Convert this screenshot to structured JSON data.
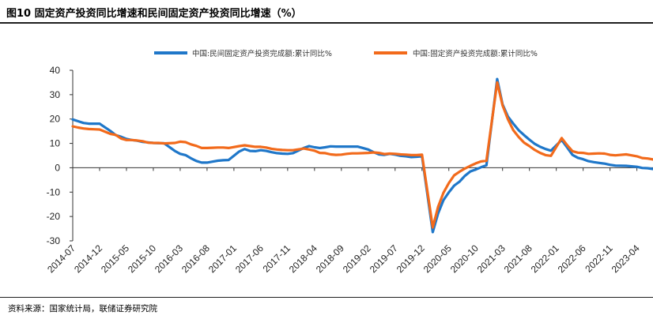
{
  "figure": {
    "title": "图10 固定资产投资同比增速和民间固定资产投资同比增速（%）",
    "source": "资料来源：国家统计局，联储证券研究院"
  },
  "chart_data": {
    "type": "line",
    "title": "图10 固定资产投资同比增速和民间固定资产投资同比增速（%）",
    "xlabel": "",
    "ylabel": "",
    "ylim": [
      -30,
      40
    ],
    "yticks": [
      -30,
      -20,
      -10,
      0,
      10,
      20,
      30,
      40
    ],
    "x_start": "2014-07",
    "x_end": "2023-07",
    "x_tick_labels": [
      "2014-07",
      "2014-12",
      "2015-05",
      "2015-10",
      "2016-03",
      "2016-08",
      "2017-01",
      "2017-06",
      "2017-11",
      "2018-04",
      "2018-09",
      "2019-02",
      "2019-07",
      "2019-12",
      "2020-05",
      "2020-10",
      "2021-03",
      "2021-08",
      "2022-01",
      "2022-06",
      "2022-11",
      "2023-04"
    ],
    "grid": false,
    "legend_position": "top",
    "series": [
      {
        "name": "中国:民间固定资产投资完成额:累计同比%",
        "color": "#1f77c9",
        "points": [
          [
            "2014-07",
            19.8
          ],
          [
            "2014-08",
            19.1
          ],
          [
            "2014-09",
            18.4
          ],
          [
            "2014-10",
            18.1
          ],
          [
            "2014-11",
            18.1
          ],
          [
            "2014-12",
            18.1
          ],
          [
            "2015-02",
            15.1
          ],
          [
            "2015-03",
            13.4
          ],
          [
            "2015-04",
            12.7
          ],
          [
            "2015-05",
            11.8
          ],
          [
            "2015-06",
            11.4
          ],
          [
            "2015-07",
            11.1
          ],
          [
            "2015-08",
            10.6
          ],
          [
            "2015-09",
            10.4
          ],
          [
            "2015-10",
            10.2
          ],
          [
            "2015-11",
            10.1
          ],
          [
            "2015-12",
            10.1
          ],
          [
            "2016-02",
            6.9
          ],
          [
            "2016-03",
            5.7
          ],
          [
            "2016-04",
            5.2
          ],
          [
            "2016-05",
            3.9
          ],
          [
            "2016-06",
            2.8
          ],
          [
            "2016-07",
            2.1
          ],
          [
            "2016-08",
            2.1
          ],
          [
            "2016-09",
            2.5
          ],
          [
            "2016-10",
            2.9
          ],
          [
            "2016-11",
            3.1
          ],
          [
            "2016-12",
            3.2
          ],
          [
            "2017-02",
            6.7
          ],
          [
            "2017-03",
            7.7
          ],
          [
            "2017-04",
            6.9
          ],
          [
            "2017-05",
            6.8
          ],
          [
            "2017-06",
            7.2
          ],
          [
            "2017-07",
            6.9
          ],
          [
            "2017-08",
            6.4
          ],
          [
            "2017-09",
            6.0
          ],
          [
            "2017-10",
            5.8
          ],
          [
            "2017-11",
            5.7
          ],
          [
            "2017-12",
            6.0
          ],
          [
            "2018-02",
            8.1
          ],
          [
            "2018-03",
            8.9
          ],
          [
            "2018-04",
            8.4
          ],
          [
            "2018-05",
            8.1
          ],
          [
            "2018-06",
            8.4
          ],
          [
            "2018-07",
            8.8
          ],
          [
            "2018-08",
            8.7
          ],
          [
            "2018-09",
            8.7
          ],
          [
            "2018-10",
            8.7
          ],
          [
            "2018-11",
            8.7
          ],
          [
            "2018-12",
            8.7
          ],
          [
            "2019-02",
            7.5
          ],
          [
            "2019-03",
            6.4
          ],
          [
            "2019-04",
            5.5
          ],
          [
            "2019-05",
            5.3
          ],
          [
            "2019-06",
            5.7
          ],
          [
            "2019-07",
            5.4
          ],
          [
            "2019-08",
            4.9
          ],
          [
            "2019-09",
            4.7
          ],
          [
            "2019-10",
            4.4
          ],
          [
            "2019-11",
            4.5
          ],
          [
            "2019-12",
            4.7
          ],
          [
            "2020-02",
            -26.4
          ],
          [
            "2020-03",
            -18.8
          ],
          [
            "2020-04",
            -13.3
          ],
          [
            "2020-05",
            -10.1
          ],
          [
            "2020-06",
            -7.3
          ],
          [
            "2020-07",
            -5.7
          ],
          [
            "2020-08",
            -3.3
          ],
          [
            "2020-09",
            -1.5
          ],
          [
            "2020-10",
            -0.7
          ],
          [
            "2020-11",
            0.2
          ],
          [
            "2020-12",
            1.0
          ],
          [
            "2021-02",
            36.4
          ],
          [
            "2021-03",
            26.0
          ],
          [
            "2021-04",
            21.0
          ],
          [
            "2021-05",
            18.1
          ],
          [
            "2021-06",
            15.4
          ],
          [
            "2021-07",
            13.4
          ],
          [
            "2021-08",
            11.5
          ],
          [
            "2021-09",
            9.8
          ],
          [
            "2021-10",
            8.6
          ],
          [
            "2021-11",
            7.7
          ],
          [
            "2021-12",
            7.0
          ],
          [
            "2022-02",
            11.4
          ],
          [
            "2022-03",
            8.4
          ],
          [
            "2022-04",
            5.3
          ],
          [
            "2022-05",
            4.1
          ],
          [
            "2022-06",
            3.5
          ],
          [
            "2022-07",
            2.7
          ],
          [
            "2022-08",
            2.3
          ],
          [
            "2022-09",
            2.0
          ],
          [
            "2022-10",
            1.7
          ],
          [
            "2022-11",
            1.2
          ],
          [
            "2022-12",
            0.9
          ],
          [
            "2023-02",
            0.8
          ],
          [
            "2023-03",
            0.6
          ],
          [
            "2023-04",
            0.4
          ],
          [
            "2023-05",
            -0.1
          ],
          [
            "2023-06",
            -0.2
          ],
          [
            "2023-07",
            -0.5
          ]
        ]
      },
      {
        "name": "中国:固定资产投资完成额:累计同比%",
        "color": "#f26a1b",
        "points": [
          [
            "2014-07",
            17.0
          ],
          [
            "2014-08",
            16.5
          ],
          [
            "2014-09",
            16.1
          ],
          [
            "2014-10",
            15.9
          ],
          [
            "2014-11",
            15.8
          ],
          [
            "2014-12",
            15.7
          ],
          [
            "2015-02",
            13.9
          ],
          [
            "2015-03",
            13.5
          ],
          [
            "2015-04",
            12.0
          ],
          [
            "2015-05",
            11.4
          ],
          [
            "2015-06",
            11.4
          ],
          [
            "2015-07",
            11.2
          ],
          [
            "2015-08",
            10.9
          ],
          [
            "2015-09",
            10.3
          ],
          [
            "2015-10",
            10.2
          ],
          [
            "2015-11",
            10.2
          ],
          [
            "2015-12",
            10.0
          ],
          [
            "2016-02",
            10.2
          ],
          [
            "2016-03",
            10.7
          ],
          [
            "2016-04",
            10.5
          ],
          [
            "2016-05",
            9.6
          ],
          [
            "2016-06",
            9.0
          ],
          [
            "2016-07",
            8.1
          ],
          [
            "2016-08",
            8.1
          ],
          [
            "2016-09",
            8.2
          ],
          [
            "2016-10",
            8.3
          ],
          [
            "2016-11",
            8.3
          ],
          [
            "2016-12",
            8.1
          ],
          [
            "2017-02",
            8.9
          ],
          [
            "2017-03",
            9.2
          ],
          [
            "2017-04",
            8.9
          ],
          [
            "2017-05",
            8.6
          ],
          [
            "2017-06",
            8.6
          ],
          [
            "2017-07",
            8.3
          ],
          [
            "2017-08",
            7.8
          ],
          [
            "2017-09",
            7.5
          ],
          [
            "2017-10",
            7.3
          ],
          [
            "2017-11",
            7.2
          ],
          [
            "2017-12",
            7.2
          ],
          [
            "2018-02",
            7.9
          ],
          [
            "2018-03",
            7.5
          ],
          [
            "2018-04",
            7.0
          ],
          [
            "2018-05",
            6.1
          ],
          [
            "2018-06",
            6.0
          ],
          [
            "2018-07",
            5.5
          ],
          [
            "2018-08",
            5.3
          ],
          [
            "2018-09",
            5.4
          ],
          [
            "2018-10",
            5.7
          ],
          [
            "2018-11",
            5.9
          ],
          [
            "2018-12",
            5.9
          ],
          [
            "2019-02",
            6.1
          ],
          [
            "2019-03",
            6.3
          ],
          [
            "2019-04",
            6.1
          ],
          [
            "2019-05",
            5.6
          ],
          [
            "2019-06",
            5.8
          ],
          [
            "2019-07",
            5.7
          ],
          [
            "2019-08",
            5.5
          ],
          [
            "2019-09",
            5.4
          ],
          [
            "2019-10",
            5.2
          ],
          [
            "2019-11",
            5.2
          ],
          [
            "2019-12",
            5.4
          ],
          [
            "2020-02",
            -24.5
          ],
          [
            "2020-03",
            -16.1
          ],
          [
            "2020-04",
            -10.3
          ],
          [
            "2020-05",
            -6.3
          ],
          [
            "2020-06",
            -3.1
          ],
          [
            "2020-07",
            -1.6
          ],
          [
            "2020-08",
            -0.3
          ],
          [
            "2020-09",
            0.8
          ],
          [
            "2020-10",
            1.8
          ],
          [
            "2020-11",
            2.6
          ],
          [
            "2020-12",
            2.9
          ],
          [
            "2021-02",
            35.0
          ],
          [
            "2021-03",
            25.6
          ],
          [
            "2021-04",
            19.9
          ],
          [
            "2021-05",
            15.4
          ],
          [
            "2021-06",
            12.6
          ],
          [
            "2021-07",
            10.3
          ],
          [
            "2021-08",
            8.9
          ],
          [
            "2021-09",
            7.3
          ],
          [
            "2021-10",
            6.1
          ],
          [
            "2021-11",
            5.2
          ],
          [
            "2021-12",
            4.9
          ],
          [
            "2022-02",
            12.2
          ],
          [
            "2022-03",
            9.3
          ],
          [
            "2022-04",
            6.8
          ],
          [
            "2022-05",
            6.2
          ],
          [
            "2022-06",
            6.1
          ],
          [
            "2022-07",
            5.7
          ],
          [
            "2022-08",
            5.8
          ],
          [
            "2022-09",
            5.9
          ],
          [
            "2022-10",
            5.8
          ],
          [
            "2022-11",
            5.3
          ],
          [
            "2022-12",
            5.1
          ],
          [
            "2023-02",
            5.5
          ],
          [
            "2023-03",
            5.1
          ],
          [
            "2023-04",
            4.7
          ],
          [
            "2023-05",
            4.0
          ],
          [
            "2023-06",
            3.8
          ],
          [
            "2023-07",
            3.4
          ]
        ]
      }
    ]
  }
}
